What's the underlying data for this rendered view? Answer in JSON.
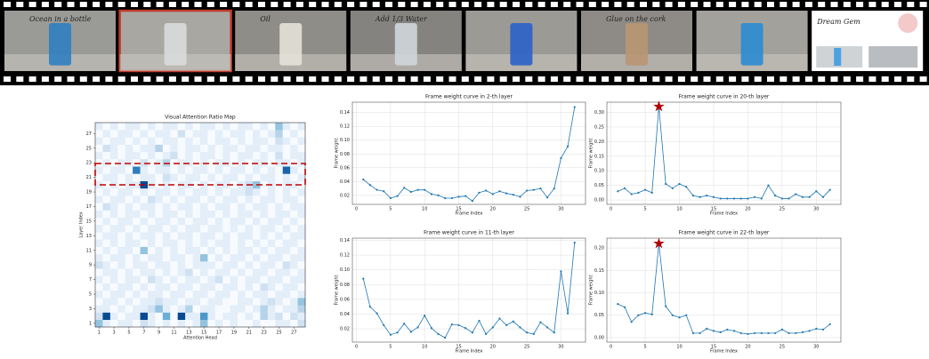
{
  "film_strip": {
    "frames": [
      {
        "caption": "Ocean in a bottle",
        "background": "#9a9a96",
        "object": "#2f7fc0",
        "ink": "#f2f2f2"
      },
      {
        "background": "#a9a7a2",
        "object": "#d9dcdc",
        "border": "#c0392b"
      },
      {
        "caption": "Oil",
        "background": "#8f8d88",
        "object": "#e4e2d8",
        "ink": "#f2f2f2"
      },
      {
        "caption": "Add 1/3 Water",
        "background": "#84837f",
        "object": "#cfd6da",
        "ink": "#f2f2f2"
      },
      {
        "background": "#9c9a95",
        "object": "#2a62c8"
      },
      {
        "caption": "Glue on the cork",
        "background": "#8e8b86",
        "object": "#b89672",
        "ink": "#f2f2f2"
      },
      {
        "background": "#a3a19c",
        "object": "#2c8bd0"
      },
      {
        "caption": "Dream Gem",
        "background": "#ffffff",
        "object": "#4aa3e0",
        "ink": "#222222"
      }
    ]
  },
  "chart_data": [
    {
      "type": "heatmap",
      "title": "Visual Attention Ratio Map",
      "x_label": "Attention Head",
      "y_label": "Layer Index",
      "xlim": [
        0.5,
        28.5
      ],
      "ylim": [
        0.5,
        28.5
      ],
      "xticks": [
        1,
        3,
        5,
        7,
        9,
        11,
        13,
        15,
        17,
        19,
        21,
        23,
        25,
        27
      ],
      "yticks": [
        1,
        3,
        5,
        7,
        9,
        11,
        13,
        15,
        17,
        19,
        21,
        23,
        25,
        27
      ],
      "clim": [
        0,
        10
      ],
      "colormap": [
        "#f7fbff",
        "#deebf7",
        "#c6dbef",
        "#9ecae1",
        "#6baed6",
        "#4292c6",
        "#2171b5",
        "#08519c",
        "#08306b"
      ],
      "values": [
        [
          4,
          1,
          0,
          1,
          1,
          0,
          2,
          1,
          0,
          1,
          0,
          1,
          0,
          1,
          4,
          0,
          1,
          0,
          1,
          0,
          0,
          1,
          0,
          0,
          1,
          1,
          0,
          2
        ],
        [
          2,
          9,
          1,
          0,
          1,
          1,
          9,
          1,
          0,
          5,
          0,
          9,
          1,
          1,
          6,
          1,
          0,
          1,
          1,
          0,
          1,
          0,
          3,
          1,
          2,
          0,
          2,
          1
        ],
        [
          1,
          1,
          0,
          1,
          0,
          1,
          1,
          2,
          4,
          1,
          0,
          1,
          3,
          0,
          1,
          1,
          0,
          0,
          1,
          1,
          0,
          1,
          3,
          1,
          0,
          1,
          1,
          3
        ],
        [
          0,
          1,
          1,
          0,
          1,
          0,
          1,
          1,
          2,
          1,
          1,
          0,
          1,
          1,
          0,
          1,
          1,
          0,
          0,
          1,
          1,
          0,
          1,
          2,
          1,
          0,
          1,
          4
        ],
        [
          1,
          0,
          1,
          1,
          0,
          1,
          0,
          1,
          1,
          0,
          1,
          1,
          0,
          1,
          1,
          0,
          1,
          1,
          0,
          1,
          0,
          1,
          1,
          0,
          1,
          1,
          0,
          1
        ],
        [
          0,
          1,
          0,
          1,
          1,
          0,
          1,
          0,
          1,
          1,
          0,
          1,
          1,
          0,
          1,
          1,
          0,
          1,
          1,
          0,
          1,
          0,
          2,
          1,
          0,
          1,
          1,
          0
        ],
        [
          1,
          0,
          1,
          0,
          1,
          1,
          0,
          2,
          1,
          0,
          1,
          0,
          1,
          1,
          0,
          1,
          2,
          0,
          1,
          0,
          1,
          1,
          0,
          1,
          1,
          0,
          1,
          1
        ],
        [
          0,
          1,
          1,
          0,
          1,
          0,
          1,
          1,
          0,
          1,
          0,
          1,
          2,
          0,
          1,
          0,
          1,
          1,
          0,
          1,
          0,
          1,
          1,
          0,
          1,
          1,
          0,
          1
        ],
        [
          2,
          1,
          0,
          1,
          0,
          1,
          1,
          0,
          1,
          1,
          0,
          1,
          0,
          1,
          1,
          1,
          0,
          1,
          1,
          0,
          1,
          0,
          1,
          1,
          0,
          2,
          1,
          0
        ],
        [
          1,
          0,
          1,
          1,
          0,
          1,
          0,
          1,
          1,
          0,
          1,
          1,
          0,
          1,
          4,
          0,
          1,
          0,
          1,
          1,
          0,
          1,
          0,
          1,
          1,
          0,
          1,
          1
        ],
        [
          0,
          1,
          0,
          1,
          1,
          0,
          4,
          0,
          1,
          0,
          1,
          0,
          1,
          1,
          0,
          1,
          0,
          1,
          0,
          1,
          1,
          0,
          1,
          0,
          1,
          1,
          0,
          1
        ],
        [
          1,
          0,
          1,
          0,
          1,
          1,
          0,
          1,
          0,
          1,
          1,
          0,
          1,
          0,
          1,
          0,
          1,
          1,
          0,
          1,
          0,
          1,
          0,
          1,
          0,
          1,
          1,
          0
        ],
        [
          0,
          1,
          1,
          0,
          1,
          0,
          1,
          1,
          0,
          1,
          0,
          1,
          1,
          0,
          1,
          1,
          0,
          1,
          0,
          1,
          1,
          0,
          1,
          0,
          1,
          0,
          1,
          1
        ],
        [
          1,
          0,
          1,
          1,
          0,
          1,
          0,
          1,
          1,
          0,
          1,
          0,
          1,
          1,
          0,
          1,
          1,
          0,
          1,
          0,
          1,
          0,
          1,
          1,
          0,
          1,
          0,
          1
        ],
        [
          0,
          1,
          0,
          1,
          1,
          0,
          1,
          0,
          1,
          1,
          0,
          1,
          0,
          1,
          1,
          0,
          1,
          0,
          1,
          1,
          0,
          1,
          0,
          1,
          1,
          0,
          1,
          0
        ],
        [
          1,
          0,
          1,
          0,
          1,
          1,
          0,
          1,
          0,
          1,
          1,
          0,
          1,
          0,
          1,
          1,
          0,
          1,
          0,
          1,
          1,
          0,
          1,
          0,
          1,
          1,
          0,
          1
        ],
        [
          0,
          2,
          1,
          0,
          1,
          0,
          1,
          1,
          0,
          1,
          0,
          1,
          1,
          0,
          1,
          0,
          1,
          1,
          0,
          1,
          0,
          1,
          1,
          0,
          1,
          0,
          1,
          1
        ],
        [
          1,
          0,
          1,
          1,
          0,
          1,
          0,
          2,
          1,
          0,
          1,
          0,
          1,
          1,
          0,
          1,
          0,
          1,
          1,
          0,
          1,
          0,
          1,
          1,
          0,
          1,
          1,
          0
        ],
        [
          0,
          1,
          0,
          1,
          1,
          0,
          1,
          0,
          1,
          1,
          0,
          1,
          0,
          1,
          1,
          0,
          1,
          0,
          1,
          1,
          2,
          1,
          0,
          1,
          0,
          1,
          0,
          1
        ],
        [
          1,
          0,
          1,
          0,
          1,
          1,
          9,
          1,
          0,
          1,
          0,
          1,
          1,
          0,
          1,
          0,
          1,
          1,
          0,
          1,
          2,
          4,
          0,
          1,
          0,
          1,
          1,
          0
        ],
        [
          0,
          1,
          1,
          0,
          1,
          0,
          1,
          1,
          0,
          2,
          1,
          0,
          1,
          1,
          0,
          1,
          0,
          1,
          1,
          0,
          1,
          0,
          1,
          1,
          0,
          1,
          0,
          1
        ],
        [
          1,
          0,
          1,
          1,
          0,
          7,
          1,
          0,
          1,
          1,
          0,
          1,
          0,
          1,
          1,
          0,
          1,
          0,
          1,
          1,
          0,
          1,
          0,
          1,
          0,
          8,
          1,
          0
        ],
        [
          0,
          1,
          0,
          1,
          1,
          0,
          2,
          0,
          1,
          3,
          0,
          1,
          1,
          0,
          1,
          0,
          1,
          1,
          0,
          1,
          0,
          1,
          1,
          0,
          1,
          1,
          0,
          1
        ],
        [
          1,
          0,
          1,
          0,
          1,
          1,
          0,
          1,
          0,
          1,
          2,
          0,
          1,
          0,
          1,
          1,
          0,
          1,
          0,
          1,
          1,
          0,
          1,
          0,
          2,
          0,
          1,
          1
        ],
        [
          0,
          2,
          1,
          0,
          1,
          0,
          1,
          1,
          3,
          0,
          1,
          0,
          1,
          1,
          0,
          1,
          0,
          1,
          1,
          0,
          1,
          1,
          0,
          1,
          1,
          0,
          1,
          0
        ],
        [
          1,
          0,
          1,
          1,
          0,
          1,
          0,
          1,
          0,
          1,
          1,
          0,
          1,
          0,
          1,
          0,
          1,
          1,
          0,
          1,
          0,
          1,
          1,
          0,
          2,
          1,
          0,
          1
        ],
        [
          0,
          1,
          0,
          1,
          1,
          0,
          1,
          0,
          1,
          1,
          0,
          2,
          0,
          1,
          1,
          0,
          1,
          0,
          1,
          1,
          0,
          1,
          0,
          1,
          3,
          0,
          1,
          0
        ],
        [
          1,
          0,
          1,
          0,
          1,
          1,
          0,
          1,
          0,
          1,
          1,
          0,
          1,
          0,
          1,
          1,
          0,
          1,
          0,
          1,
          1,
          0,
          1,
          0,
          4,
          1,
          0,
          1
        ]
      ]
    },
    {
      "type": "line",
      "title": "Frame weight curve in 2-th layer",
      "x_label": "Frame Index",
      "y_label": "Frame weight",
      "color": "#1f77b4",
      "grid": true,
      "xlim": [
        -0.6,
        33.6
      ],
      "ylim": [
        0.007,
        0.155
      ],
      "xticks": [
        0,
        5,
        10,
        15,
        20,
        25,
        30
      ],
      "yticks": [
        0.02,
        0.04,
        0.06,
        0.08,
        {
          "value": 0.1,
          "label": "0.10"
        },
        0.12,
        0.14
      ],
      "x": [
        1,
        2,
        3,
        4,
        5,
        6,
        7,
        8,
        9,
        10,
        11,
        12,
        13,
        14,
        15,
        16,
        17,
        18,
        19,
        20,
        21,
        22,
        23,
        24,
        25,
        26,
        27,
        28,
        29,
        30,
        31,
        32
      ],
      "values": [
        0.043,
        0.035,
        0.028,
        0.026,
        0.016,
        0.019,
        0.031,
        0.025,
        0.028,
        0.028,
        0.022,
        0.02,
        0.016,
        0.016,
        0.018,
        0.019,
        0.012,
        0.024,
        0.027,
        0.022,
        0.026,
        0.023,
        0.021,
        0.018,
        0.027,
        0.028,
        0.03,
        0.017,
        0.03,
        0.074,
        0.091,
        0.148
      ]
    },
    {
      "type": "line",
      "title": "Frame weight curve in 20-th layer",
      "x_label": "Frame Index",
      "y_label": "Frame weight",
      "color": "#1f77b4",
      "grid": true,
      "highlight_x": 7,
      "highlight_color": "#b00000",
      "xlim": [
        -0.6,
        33.6
      ],
      "ylim": [
        -0.015,
        0.335
      ],
      "xticks": [
        0,
        5,
        10,
        15,
        20,
        25,
        30
      ],
      "yticks": [
        {
          "value": 0,
          "label": "0.00"
        },
        0.05,
        {
          "value": 0.1,
          "label": "0.10"
        },
        0.15,
        {
          "value": 0.2,
          "label": "0.20"
        },
        0.25,
        {
          "value": 0.3,
          "label": "0.30"
        }
      ],
      "x": [
        1,
        2,
        3,
        4,
        5,
        6,
        7,
        8,
        9,
        10,
        11,
        12,
        13,
        14,
        15,
        16,
        17,
        18,
        19,
        20,
        21,
        22,
        23,
        24,
        25,
        26,
        27,
        28,
        29,
        30,
        31,
        32
      ],
      "values": [
        0.03,
        0.04,
        0.02,
        0.025,
        0.035,
        0.025,
        0.32,
        0.055,
        0.04,
        0.055,
        0.045,
        0.015,
        0.01,
        0.015,
        0.01,
        0.005,
        0.005,
        0.005,
        0.005,
        0.005,
        0.01,
        0.005,
        0.05,
        0.015,
        0.005,
        0.005,
        0.02,
        0.01,
        0.01,
        0.03,
        0.01,
        0.035
      ]
    },
    {
      "type": "line",
      "title": "Frame weight curve in 11-th layer",
      "x_label": "Frame Index",
      "y_label": "Frame weight",
      "color": "#1f77b4",
      "grid": true,
      "xlim": [
        -0.6,
        33.6
      ],
      "ylim": [
        0.002,
        0.143
      ],
      "xticks": [
        0,
        5,
        10,
        15,
        20,
        25,
        30
      ],
      "yticks": [
        0.02,
        0.04,
        0.06,
        0.08,
        {
          "value": 0.1,
          "label": "0.10"
        },
        0.12,
        0.14
      ],
      "x": [
        1,
        2,
        3,
        4,
        5,
        6,
        7,
        8,
        9,
        10,
        11,
        12,
        13,
        14,
        15,
        16,
        17,
        18,
        19,
        20,
        21,
        22,
        23,
        24,
        25,
        26,
        27,
        28,
        29,
        30,
        31,
        32
      ],
      "values": [
        0.088,
        0.05,
        0.041,
        0.025,
        0.012,
        0.015,
        0.027,
        0.016,
        0.022,
        0.038,
        0.021,
        0.013,
        0.008,
        0.026,
        0.025,
        0.021,
        0.015,
        0.031,
        0.013,
        0.022,
        0.034,
        0.025,
        0.03,
        0.022,
        0.015,
        0.013,
        0.029,
        0.022,
        0.015,
        0.098,
        0.041,
        0.137
      ]
    },
    {
      "type": "line",
      "title": "Frame weight curve in 22-th layer",
      "x_label": "Frame Index",
      "y_label": "Frame weight",
      "color": "#1f77b4",
      "grid": true,
      "highlight_x": 7,
      "highlight_color": "#b00000",
      "xlim": [
        -0.6,
        33.6
      ],
      "ylim": [
        -0.01,
        0.222
      ],
      "xticks": [
        0,
        5,
        10,
        15,
        20,
        25,
        30
      ],
      "yticks": [
        {
          "value": 0,
          "label": "0.00"
        },
        0.05,
        {
          "value": 0.1,
          "label": "0.10"
        },
        0.15,
        {
          "value": 0.2,
          "label": "0.20"
        }
      ],
      "x": [
        1,
        2,
        3,
        4,
        5,
        6,
        7,
        8,
        9,
        10,
        11,
        12,
        13,
        14,
        15,
        16,
        17,
        18,
        19,
        20,
        21,
        22,
        23,
        24,
        25,
        26,
        27,
        28,
        29,
        30,
        31,
        32
      ],
      "values": [
        0.075,
        0.068,
        0.035,
        0.05,
        0.055,
        0.052,
        0.21,
        0.07,
        0.05,
        0.045,
        0.05,
        0.01,
        0.01,
        0.02,
        0.015,
        0.012,
        0.018,
        0.015,
        0.01,
        0.008,
        0.01,
        0.01,
        0.01,
        0.01,
        0.018,
        0.01,
        0.01,
        0.012,
        0.015,
        0.02,
        0.018,
        0.03
      ]
    }
  ]
}
